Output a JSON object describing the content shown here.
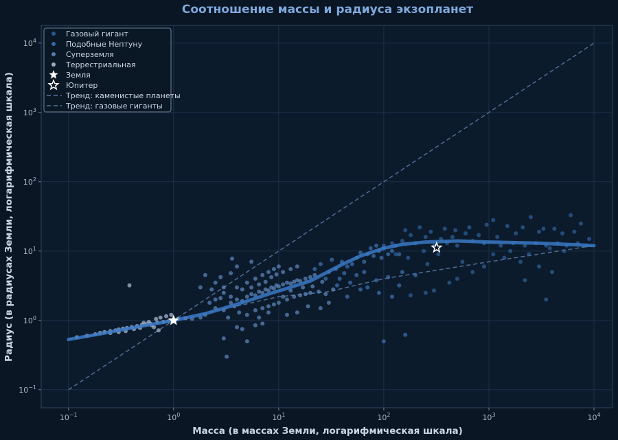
{
  "chart_data": {
    "type": "scatter",
    "title": "Соотношение массы и радиуса экзопланет",
    "xlabel": "Масса (в массах Земли, логарифмическая шкала)",
    "ylabel": "Радиус (в радиусах Земли, логарифмическая шкала)",
    "xscale": "log",
    "yscale": "log",
    "xlim": [
      0.055,
      15000
    ],
    "ylim": [
      0.055,
      18000
    ],
    "grid": true,
    "legend_position": "top-left",
    "colors": {
      "background": "#0b1624",
      "plot_background": "#0c1b2c",
      "gas_giant": "#2d5f97",
      "neptune_like": "#3d72b0",
      "super_earth": "#5d87bb",
      "terrestrial": "#aabdd4",
      "trend_line": "#3978c4",
      "trend_dashed": "#5577a0",
      "accent_title": "#7fa9dd"
    },
    "x_ticks": [
      {
        "value": 0.1,
        "base": "10",
        "exp": "−1"
      },
      {
        "value": 1,
        "base": "10",
        "exp": "0"
      },
      {
        "value": 10,
        "base": "10",
        "exp": "1"
      },
      {
        "value": 100,
        "base": "10",
        "exp": "2"
      },
      {
        "value": 1000,
        "base": "10",
        "exp": "3"
      },
      {
        "value": 10000,
        "base": "10",
        "exp": "4"
      }
    ],
    "y_ticks": [
      {
        "value": 0.1,
        "base": "10",
        "exp": "−1"
      },
      {
        "value": 1,
        "base": "10",
        "exp": "0"
      },
      {
        "value": 10,
        "base": "10",
        "exp": "1"
      },
      {
        "value": 100,
        "base": "10",
        "exp": "2"
      },
      {
        "value": 1000,
        "base": "10",
        "exp": "3"
      },
      {
        "value": 10000,
        "base": "10",
        "exp": "4"
      }
    ],
    "series": [
      {
        "name": "Газовый гигант",
        "points": [
          [
            1100,
            28
          ],
          [
            2500,
            31
          ],
          [
            6000,
            33
          ],
          [
            7500,
            25
          ],
          [
            9000,
            15
          ],
          [
            4200,
            21
          ],
          [
            3000,
            19
          ],
          [
            1800,
            18
          ],
          [
            1200,
            16
          ],
          [
            800,
            17
          ],
          [
            600,
            18
          ],
          [
            450,
            16
          ],
          [
            350,
            15
          ],
          [
            250,
            16
          ],
          [
            180,
            17
          ],
          [
            150,
            14
          ],
          [
            120,
            13
          ],
          [
            100,
            12
          ],
          [
            200,
            13
          ],
          [
            300,
            12
          ],
          [
            400,
            13
          ],
          [
            500,
            12
          ],
          [
            700,
            14
          ],
          [
            900,
            13
          ],
          [
            1300,
            12
          ],
          [
            1700,
            13
          ],
          [
            2200,
            12
          ],
          [
            2800,
            13
          ],
          [
            3500,
            12
          ],
          [
            4500,
            13
          ],
          [
            5500,
            12
          ],
          [
            7000,
            13
          ],
          [
            8500,
            12
          ],
          [
            160,
            20
          ],
          [
            220,
            22
          ],
          [
            280,
            19
          ],
          [
            380,
            21
          ],
          [
            480,
            20
          ],
          [
            650,
            22
          ],
          [
            950,
            24
          ],
          [
            1500,
            23
          ],
          [
            2100,
            22
          ],
          [
            3300,
            21
          ],
          [
            5000,
            18
          ],
          [
            6500,
            19
          ],
          [
            1400,
            8
          ],
          [
            2000,
            7
          ],
          [
            3000,
            6
          ],
          [
            4000,
            5
          ],
          [
            700,
            5
          ],
          [
            500,
            4
          ],
          [
            420,
            3.5
          ],
          [
            300,
            2.7
          ],
          [
            250,
            2.5
          ],
          [
            180,
            2.3
          ],
          [
            2200,
            3.8
          ],
          [
            3500,
            2
          ],
          [
            900,
            6
          ],
          [
            130,
            9
          ],
          [
            170,
            8
          ],
          [
            240,
            10
          ],
          [
            330,
            9
          ],
          [
            260,
            6.5
          ],
          [
            560,
            7
          ],
          [
            1100,
            9
          ],
          [
            1600,
            10
          ],
          [
            2400,
            9
          ],
          [
            3800,
            11
          ],
          [
            5200,
            10
          ]
        ]
      },
      {
        "name": "Подобные Нептуну",
        "points": [
          [
            40,
            7
          ],
          [
            55,
            8
          ],
          [
            70,
            9
          ],
          [
            80,
            8.5
          ],
          [
            90,
            10
          ],
          [
            60,
            9.5
          ],
          [
            45,
            6
          ],
          [
            35,
            5.5
          ],
          [
            100,
            11
          ],
          [
            110,
            9
          ],
          [
            75,
            11
          ],
          [
            85,
            12
          ],
          [
            65,
            7
          ],
          [
            50,
            6.5
          ],
          [
            120,
            10
          ],
          [
            130,
            12
          ],
          [
            140,
            9
          ],
          [
            95,
            8
          ],
          [
            42,
            4.8
          ],
          [
            38,
            4
          ],
          [
            30,
            5
          ],
          [
            28,
            4
          ],
          [
            55,
            4.5
          ],
          [
            65,
            5
          ],
          [
            48,
            3.5
          ],
          [
            36,
            3.2
          ],
          [
            70,
            3
          ],
          [
            85,
            3.8
          ],
          [
            110,
            4.2
          ],
          [
            150,
            5
          ],
          [
            200,
            4.5
          ],
          [
            140,
            3.2
          ],
          [
            90,
            2.5
          ],
          [
            120,
            2.2
          ],
          [
            60,
            2.8
          ],
          [
            45,
            2.2
          ],
          [
            100,
            0.5
          ],
          [
            160,
            0.62
          ],
          [
            25,
            6.5
          ],
          [
            22,
            5.5
          ],
          [
            32,
            7.5
          ]
        ]
      },
      {
        "name": "Суперземля",
        "points": [
          [
            2,
            1.2
          ],
          [
            2.5,
            1.5
          ],
          [
            3,
            1.4
          ],
          [
            3.5,
            1.8
          ],
          [
            4,
            2
          ],
          [
            4.5,
            1.9
          ],
          [
            5,
            2.2
          ],
          [
            5.5,
            2.4
          ],
          [
            6,
            2.3
          ],
          [
            6.5,
            2.6
          ],
          [
            7,
            2.5
          ],
          [
            7.5,
            2.8
          ],
          [
            8,
            2.7
          ],
          [
            8.5,
            3
          ],
          [
            9,
            2.9
          ],
          [
            9.5,
            3.2
          ],
          [
            10,
            3.1
          ],
          [
            11,
            3.3
          ],
          [
            12,
            3.5
          ],
          [
            13,
            3.4
          ],
          [
            14,
            3.6
          ],
          [
            15,
            3.8
          ],
          [
            16,
            3.7
          ],
          [
            18,
            4
          ],
          [
            20,
            4.2
          ],
          [
            22,
            4.5
          ],
          [
            3,
            2.5
          ],
          [
            4,
            3
          ],
          [
            5,
            3.5
          ],
          [
            6,
            4
          ],
          [
            7,
            4.5
          ],
          [
            8,
            5
          ],
          [
            9,
            5.5
          ],
          [
            10,
            6
          ],
          [
            5,
            1.2
          ],
          [
            6,
            1.4
          ],
          [
            7,
            1.5
          ],
          [
            8,
            1.6
          ],
          [
            9,
            1.7
          ],
          [
            10,
            1.8
          ],
          [
            12,
            2
          ],
          [
            14,
            2.2
          ],
          [
            16,
            2.3
          ],
          [
            18,
            2.4
          ],
          [
            20,
            2.5
          ],
          [
            2.5,
            2
          ],
          [
            3.5,
            2.2
          ],
          [
            4.5,
            2.8
          ],
          [
            5.5,
            3
          ],
          [
            6.5,
            3.3
          ],
          [
            7.5,
            3.6
          ],
          [
            8.5,
            4.2
          ],
          [
            9.5,
            4.6
          ],
          [
            11,
            5
          ],
          [
            13,
            5.5
          ],
          [
            15,
            6
          ],
          [
            4,
            0.8
          ],
          [
            4.5,
            0.75
          ],
          [
            3,
            0.55
          ],
          [
            3.2,
            0.3
          ],
          [
            5,
            0.5
          ],
          [
            6,
            0.85
          ],
          [
            7,
            0.9
          ],
          [
            12,
            1.2
          ],
          [
            15,
            1.3
          ],
          [
            25,
            1.5
          ],
          [
            30,
            1.8
          ],
          [
            2.2,
            1.8
          ],
          [
            2.8,
            2.1
          ],
          [
            3.3,
            1.1
          ],
          [
            1.5,
            1.05
          ],
          [
            1.8,
            1.1
          ],
          [
            4,
            6
          ],
          [
            3.5,
            4.8
          ],
          [
            2.8,
            4.2
          ],
          [
            2.5,
            3.5
          ],
          [
            5.5,
            7
          ],
          [
            3.6,
            7.8
          ],
          [
            2,
            4.5
          ],
          [
            1.8,
            3
          ],
          [
            2.3,
            2.8
          ],
          [
            3,
            3
          ],
          [
            11,
            2.2
          ],
          [
            13,
            2.7
          ],
          [
            17,
            3
          ],
          [
            21,
            3.1
          ],
          [
            24,
            2.6
          ],
          [
            28,
            2.4
          ],
          [
            33,
            2.8
          ],
          [
            26,
            3.6
          ],
          [
            19,
            1.6
          ],
          [
            8,
            1.3
          ],
          [
            6.5,
            1.1
          ],
          [
            3.8,
            1.6
          ],
          [
            4.2,
            1.3
          ]
        ]
      },
      {
        "name": "Терреcтриальная",
        "points": [
          [
            0.12,
            0.57
          ],
          [
            0.15,
            0.6
          ],
          [
            0.18,
            0.63
          ],
          [
            0.2,
            0.66
          ],
          [
            0.22,
            0.68
          ],
          [
            0.25,
            0.7
          ],
          [
            0.28,
            0.72
          ],
          [
            0.3,
            0.74
          ],
          [
            0.33,
            0.76
          ],
          [
            0.36,
            0.78
          ],
          [
            0.4,
            0.8
          ],
          [
            0.45,
            0.83
          ],
          [
            0.5,
            0.86
          ],
          [
            0.55,
            0.88
          ],
          [
            0.6,
            0.9
          ],
          [
            0.7,
            0.93
          ],
          [
            0.8,
            0.95
          ],
          [
            0.9,
            0.98
          ],
          [
            0.35,
            0.7
          ],
          [
            0.42,
            0.75
          ],
          [
            0.48,
            0.78
          ],
          [
            0.52,
            0.92
          ],
          [
            0.62,
            0.85
          ],
          [
            0.68,
            1.05
          ],
          [
            0.75,
            1.1
          ],
          [
            0.85,
            1.15
          ],
          [
            0.95,
            1.2
          ],
          [
            0.65,
            0.8
          ],
          [
            0.58,
            0.95
          ],
          [
            0.38,
            3.2
          ],
          [
            1.1,
            1.05
          ],
          [
            1.3,
            1.08
          ],
          [
            0.72,
            0.72
          ],
          [
            0.3,
            0.68
          ],
          [
            0.25,
            0.66
          ]
        ]
      }
    ],
    "markers": [
      {
        "name": "Земля",
        "x": 1,
        "y": 1
      },
      {
        "name": "Юпитер",
        "x": 318,
        "y": 11.2
      }
    ],
    "trend_lines": [
      {
        "name": "Тренд: каменистые планеты",
        "points": [
          [
            0.1,
            0.1
          ],
          [
            10000,
            10000
          ]
        ]
      },
      {
        "name": "Тренд: газовые гиганты",
        "points": [
          [
            0.1,
            0.53
          ],
          [
            1,
            1
          ],
          [
            10,
            2.2
          ],
          [
            30,
            2.6
          ],
          [
            100,
            4
          ],
          [
            1000,
            7
          ],
          [
            10000,
            12
          ]
        ]
      }
    ],
    "fit_curve": {
      "points": [
        [
          0.1,
          0.53
        ],
        [
          0.2,
          0.64
        ],
        [
          0.3,
          0.72
        ],
        [
          0.5,
          0.83
        ],
        [
          1,
          1
        ],
        [
          2,
          1.25
        ],
        [
          3,
          1.5
        ],
        [
          5,
          1.9
        ],
        [
          8,
          2.4
        ],
        [
          12,
          2.9
        ],
        [
          20,
          3.7
        ],
        [
          40,
          6.4
        ],
        [
          60,
          8.5
        ],
        [
          100,
          11
        ],
        [
          150,
          12.5
        ],
        [
          250,
          13.5
        ],
        [
          500,
          14
        ],
        [
          1000,
          13.5
        ],
        [
          3000,
          13
        ],
        [
          10000,
          12
        ]
      ]
    },
    "legend": [
      "Газовый гигант",
      "Подобные Нептуну",
      "Суперземля",
      "Терреcтриальная",
      "Земля",
      "Юпитер",
      "Тренд: каменистые планеты",
      "Тренд: газовые гиганты"
    ]
  }
}
